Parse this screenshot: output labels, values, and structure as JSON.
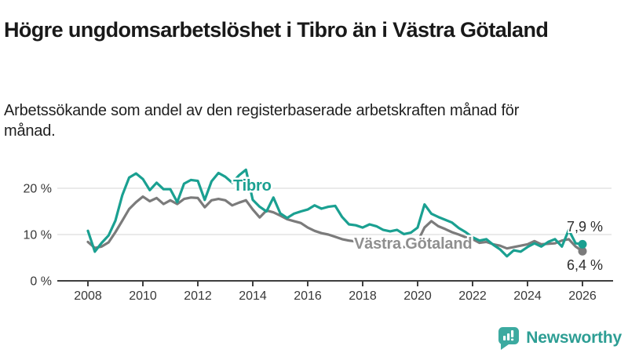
{
  "header": {
    "title": "Högre ungdomsarbetslöshet i Tibro än i Västra Götaland",
    "subtitle": "Arbetssökande som andel av den registerbaserade arbetskraften månad för månad."
  },
  "chart_data": {
    "type": "line",
    "title": "Högre ungdomsarbetslöshet i Tibro än i Västra Götaland",
    "subtitle": "Arbetssökande som andel av den registerbaserade arbetskraften månad för månad.",
    "unit": "%",
    "x_start": 2008,
    "x_step": 0.25,
    "xlim": [
      2007.5,
      2027
    ],
    "ylim": [
      0,
      30
    ],
    "grid": true,
    "x_ticks": [
      "2008",
      "2010",
      "2012",
      "2014",
      "2016",
      "2018",
      "2020",
      "2022",
      "2024",
      "2026"
    ],
    "y_ticks": [
      {
        "value": 0,
        "label": "0 %"
      },
      {
        "value": 10,
        "label": "10 %"
      },
      {
        "value": 20,
        "label": "20 %"
      }
    ],
    "series": [
      {
        "name": "Västra Götaland",
        "color": "#7b7b7b",
        "label_color": "#8f8f8f",
        "end_label": "6,4 %",
        "end_value": 6.4,
        "values": [
          8.4,
          7.1,
          7.4,
          8.3,
          10.5,
          13.0,
          15.5,
          17.0,
          18.2,
          17.2,
          17.9,
          16.6,
          17.4,
          16.6,
          17.7,
          18.0,
          17.9,
          15.9,
          17.4,
          17.7,
          17.4,
          16.3,
          16.9,
          17.4,
          15.4,
          13.7,
          15.2,
          14.8,
          14.1,
          13.3,
          12.9,
          12.5,
          11.5,
          10.8,
          10.3,
          10.0,
          9.5,
          9.0,
          8.7,
          8.5,
          8.3,
          8.4,
          8.1,
          7.9,
          7.9,
          7.6,
          7.3,
          7.7,
          8.5,
          11.5,
          12.9,
          11.8,
          11.2,
          10.5,
          10.0,
          9.4,
          9.0,
          8.2,
          8.4,
          7.9,
          7.6,
          7.0,
          7.3,
          7.6,
          7.9,
          8.6,
          7.9,
          8.0,
          8.1,
          8.7,
          9.0,
          7.4,
          6.4
        ]
      },
      {
        "name": "Tibro",
        "color": "#1aa091",
        "label_color": "#1aa091",
        "end_label": "7,9 %",
        "end_value": 7.9,
        "values": [
          10.8,
          6.3,
          8.2,
          9.8,
          13.0,
          18.5,
          22.3,
          23.2,
          22.0,
          19.6,
          21.2,
          19.8,
          19.8,
          17.0,
          21.0,
          21.8,
          21.6,
          17.5,
          21.5,
          23.3,
          22.5,
          21.2,
          22.8,
          24.0,
          17.5,
          16.0,
          15.0,
          18.0,
          14.6,
          13.6,
          14.5,
          15.0,
          15.4,
          16.3,
          15.6,
          16.0,
          16.2,
          13.8,
          12.2,
          12.0,
          11.5,
          12.2,
          11.8,
          11.0,
          10.7,
          11.0,
          10.1,
          10.4,
          11.5,
          16.5,
          14.5,
          13.8,
          13.2,
          12.6,
          11.4,
          10.5,
          9.4,
          8.7,
          9.0,
          7.8,
          6.8,
          5.3,
          6.6,
          6.3,
          7.3,
          8.1,
          7.4,
          8.4,
          9.0,
          7.4,
          11.0,
          8.1,
          7.9
        ]
      }
    ],
    "legend_position": "inline-labels",
    "colors": {
      "grid": "#e4e4e4",
      "axis": "#3f3f3f",
      "tick_label": "#383838",
      "end_label_text": "#2e2e2e"
    }
  },
  "footer": {
    "brand": "Newsworthy",
    "logo_icon": "newsworthy-speech-bubble-chart-icon",
    "brand_color": "#2d9e94",
    "icon_color": "#3caaa0"
  }
}
